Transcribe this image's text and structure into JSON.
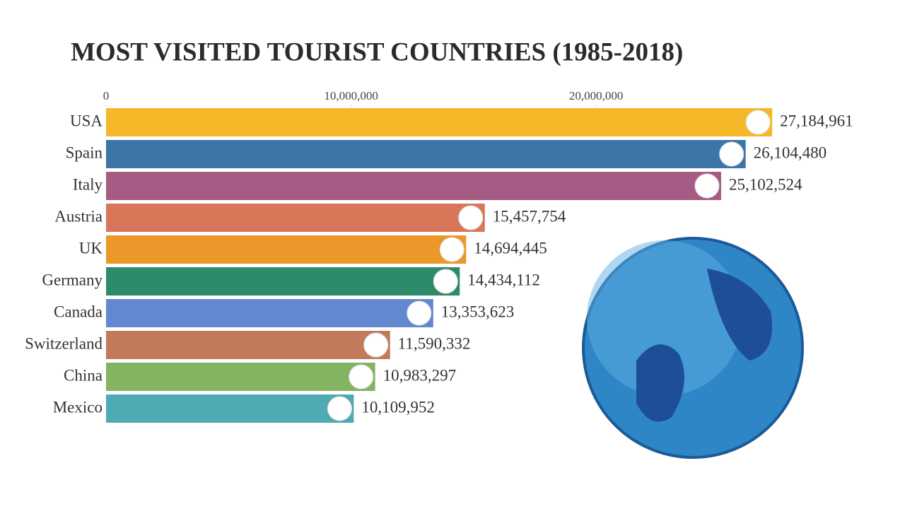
{
  "chart_data": {
    "type": "bar",
    "orientation": "horizontal",
    "title": "MOST VISITED TOURIST COUNTRIES (1985-2018)",
    "categories": [
      "USA",
      "Spain",
      "Italy",
      "Austria",
      "UK",
      "Germany",
      "Canada",
      "Switzerland",
      "China",
      "Mexico"
    ],
    "values": [
      27184961,
      26104480,
      25102524,
      15457754,
      14694445,
      14434112,
      13353623,
      11590332,
      10983297,
      10109952
    ],
    "value_labels": [
      "27,184,961",
      "26,104,480",
      "25,102,524",
      "15,457,754",
      "14,694,445",
      "14,434,112",
      "13,353,623",
      "11,590,332",
      "10,983,297",
      "10,109,952"
    ],
    "colors": [
      "#f4b829",
      "#3d76a6",
      "#a45c84",
      "#d97558",
      "#ec972a",
      "#2d8a6a",
      "#6289d0",
      "#c27a5a",
      "#82b461",
      "#4eaab3"
    ],
    "xlim": [
      0,
      32000000
    ],
    "xticks": [
      0,
      {
        "value": 10000000,
        "label": "10,000,000"
      },
      {
        "value": 20000000,
        "label": "20,000,000"
      }
    ]
  }
}
